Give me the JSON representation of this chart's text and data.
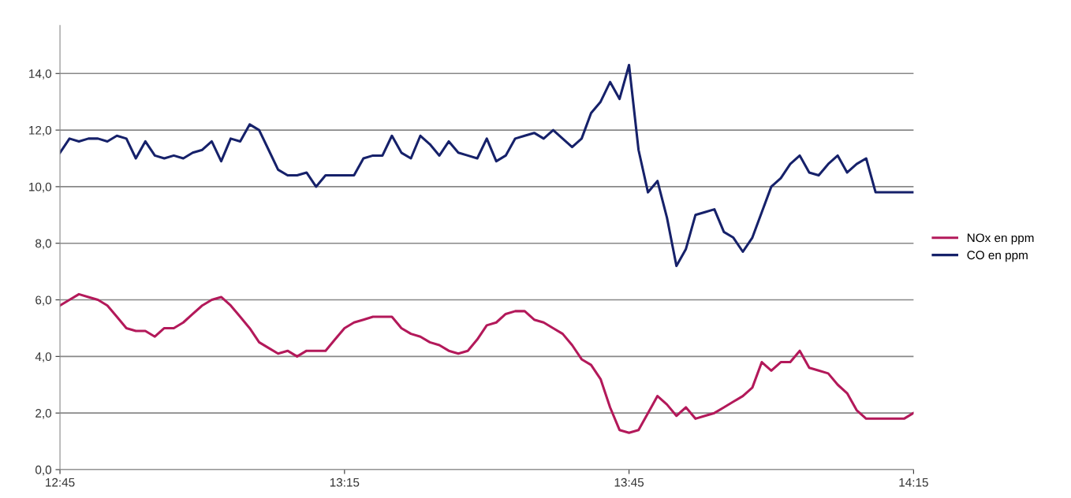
{
  "chart_data": {
    "type": "line",
    "x": [
      12.75,
      12.7667,
      12.7833,
      12.8,
      12.8167,
      12.8333,
      12.85,
      12.8667,
      12.8833,
      12.9,
      12.9167,
      12.9333,
      12.95,
      12.9667,
      12.9833,
      13.0,
      13.0167,
      13.0333,
      13.05,
      13.0667,
      13.0833,
      13.1,
      13.1167,
      13.1333,
      13.15,
      13.1667,
      13.1833,
      13.2,
      13.2167,
      13.2333,
      13.25,
      13.2667,
      13.2833,
      13.3,
      13.3167,
      13.3333,
      13.35,
      13.3667,
      13.3833,
      13.4,
      13.4167,
      13.4333,
      13.45,
      13.4667,
      13.4833,
      13.5,
      13.5167,
      13.5333,
      13.55,
      13.5667,
      13.5833,
      13.6,
      13.6167,
      13.6333,
      13.65,
      13.6667,
      13.6833,
      13.7,
      13.7167,
      13.7333,
      13.75,
      13.7667,
      13.7833,
      13.8,
      13.8167,
      13.8333,
      13.85,
      13.8667,
      13.8833,
      13.9,
      13.9167,
      13.9333,
      13.95,
      13.9667,
      13.9833,
      14.0,
      14.0167,
      14.0333,
      14.05,
      14.0667,
      14.0833,
      14.1,
      14.1167,
      14.1333,
      14.15,
      14.1667,
      14.1833,
      14.2,
      14.2167,
      14.2333,
      14.25
    ],
    "series": [
      {
        "name": "NOx en ppm",
        "color": "#b3195a",
        "values": [
          5.8,
          6.0,
          6.2,
          6.1,
          6.0,
          5.8,
          5.4,
          5.0,
          4.9,
          4.9,
          4.7,
          5.0,
          5.0,
          5.2,
          5.5,
          5.8,
          6.0,
          6.1,
          5.8,
          5.4,
          5.0,
          4.5,
          4.3,
          4.1,
          4.2,
          4.0,
          4.2,
          4.2,
          4.2,
          4.6,
          5.0,
          5.2,
          5.3,
          5.4,
          5.4,
          5.4,
          5.0,
          4.8,
          4.7,
          4.5,
          4.4,
          4.2,
          4.1,
          4.2,
          4.6,
          5.1,
          5.2,
          5.5,
          5.6,
          5.6,
          5.3,
          5.2,
          5.0,
          4.8,
          4.4,
          3.9,
          3.7,
          3.2,
          2.2,
          1.4,
          1.3,
          1.4,
          2.0,
          2.6,
          2.3,
          1.9,
          2.2,
          1.8,
          1.9,
          2.0,
          2.2,
          2.4,
          2.6,
          2.9,
          3.8,
          3.5,
          3.8,
          3.8,
          4.2,
          3.6,
          3.5,
          3.4,
          3.0,
          2.7,
          2.1,
          1.8,
          1.8,
          1.8,
          1.8,
          1.8,
          2.0
        ]
      },
      {
        "name": "CO en ppm",
        "color": "#16216a",
        "values": [
          11.2,
          11.7,
          11.6,
          11.7,
          11.7,
          11.6,
          11.8,
          11.7,
          11.0,
          11.6,
          11.1,
          11.0,
          11.1,
          11.0,
          11.2,
          11.3,
          11.6,
          10.9,
          11.7,
          11.6,
          12.2,
          12.0,
          11.3,
          10.6,
          10.4,
          10.4,
          10.5,
          10.0,
          10.4,
          10.4,
          10.4,
          10.4,
          11.0,
          11.1,
          11.1,
          11.8,
          11.2,
          11.0,
          11.8,
          11.5,
          11.1,
          11.6,
          11.2,
          11.1,
          11.0,
          11.7,
          10.9,
          11.1,
          11.7,
          11.8,
          11.9,
          11.7,
          12.0,
          11.7,
          11.4,
          11.7,
          12.6,
          13.0,
          13.7,
          13.1,
          14.3,
          11.3,
          9.8,
          10.2,
          8.9,
          7.2,
          7.8,
          9.0,
          9.1,
          9.2,
          8.4,
          8.2,
          7.7,
          8.2,
          9.1,
          10.0,
          10.3,
          10.8,
          11.1,
          10.5,
          10.4,
          10.8,
          11.1,
          10.5,
          10.8,
          11.0,
          9.8,
          9.8,
          9.8,
          9.8,
          9.8
        ]
      }
    ],
    "xlim": [
      12.75,
      14.25
    ],
    "xticks": [
      {
        "value": 12.75,
        "label": "12:45"
      },
      {
        "value": 13.25,
        "label": "13:15"
      },
      {
        "value": 13.75,
        "label": "13:45"
      },
      {
        "value": 14.25,
        "label": "14:15"
      }
    ],
    "ylim": [
      0,
      15.7
    ],
    "yticks": [
      {
        "value": 0,
        "label": "0,0"
      },
      {
        "value": 2,
        "label": "2,0"
      },
      {
        "value": 4,
        "label": "4,0"
      },
      {
        "value": 6,
        "label": "6,0"
      },
      {
        "value": 8,
        "label": "8,0"
      },
      {
        "value": 10,
        "label": "10,0"
      },
      {
        "value": 12,
        "label": "12,0"
      },
      {
        "value": 14,
        "label": "14,0"
      }
    ],
    "grid": "y",
    "legend": "right",
    "marker": "none",
    "line_style": "solid"
  }
}
